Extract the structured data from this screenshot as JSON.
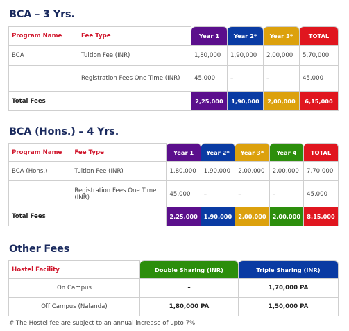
{
  "bca": {
    "title": "BCA – 3 Yrs.",
    "headers": [
      "Program Name",
      "Fee Type",
      "Year 1",
      "Year 2*",
      "Year 3*",
      "TOTAL"
    ],
    "rows": [
      [
        "BCA",
        "Tuition Fee (INR)",
        "1,80,000",
        "1,90,000",
        "2,00,000",
        "5,70,000"
      ],
      [
        "",
        "Registration Fees One Time (INR)",
        "45,000",
        "–",
        "–",
        "45,000"
      ]
    ],
    "total_label": "Total Fees",
    "totals": [
      "2,25,000",
      "1,90,000",
      "2,00,000",
      "6,15,000"
    ]
  },
  "bca_hons": {
    "title": "BCA (Hons.) – 4 Yrs.",
    "headers": [
      "Program Name",
      "Fee Type",
      "Year 1",
      "Year 2*",
      "Year 3*",
      "Year 4",
      "TOTAL"
    ],
    "rows": [
      [
        "BCA (Hons.)",
        "Tuition Fee (INR)",
        "1,80,000",
        "1,90,000",
        "2,00,000",
        "2,00,000",
        "7,70,000"
      ],
      [
        "",
        "Registration Fees One Time (INR)",
        "45,000",
        "–",
        "–",
        "–",
        "45,000"
      ]
    ],
    "total_label": "Total Fees",
    "totals": [
      "2,25,000",
      "1,90,000",
      "2,00,000",
      "2,00,000",
      "8,15,000"
    ]
  },
  "other": {
    "title": "Other Fees",
    "headers": [
      "Hostel Facility",
      "Double Sharing (INR)",
      "Triple Sharing (INR)"
    ],
    "rows": [
      [
        "On Campus",
        "–",
        "1,70,000 PA"
      ],
      [
        "Off Campus (Nalanda)",
        "1,80,000 PA",
        "1,50,000 PA"
      ]
    ],
    "note": "# The Hostel fee are subject to an annual increase of upto 7%"
  }
}
